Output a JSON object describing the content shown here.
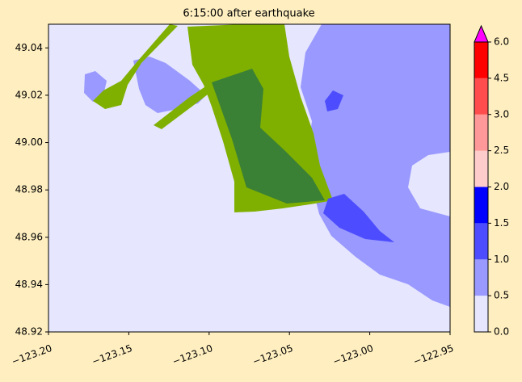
{
  "chart_data": {
    "type": "map",
    "title": "6:15:00 after earthquake",
    "xlim": [
      -123.2,
      -122.95
    ],
    "ylim": [
      48.92,
      49.05
    ],
    "xticks": [
      {
        "value": -123.2,
        "label": "−123.20"
      },
      {
        "value": -123.15,
        "label": "−123.15"
      },
      {
        "value": -123.1,
        "label": "−123.10"
      },
      {
        "value": -123.05,
        "label": "−123.05"
      },
      {
        "value": -123.0,
        "label": "−123.00"
      },
      {
        "value": -122.95,
        "label": "−122.95"
      }
    ],
    "yticks": [
      48.92,
      48.94,
      48.96,
      48.98,
      {
        "value": 49.0,
        "label": "49.00"
      },
      49.02,
      49.04
    ],
    "colorbar": {
      "levels": [
        {
          "value": 0,
          "label": "0.0"
        },
        {
          "value": 0.5,
          "label": "0.5"
        },
        {
          "value": 1,
          "label": "1.0"
        },
        {
          "value": 1.5,
          "label": "1.5"
        },
        {
          "value": 2,
          "label": "2.0"
        },
        {
          "value": 2.5,
          "label": "2.5"
        },
        {
          "value": 3,
          "label": "3.0"
        },
        {
          "value": 4.5,
          "label": "4.5"
        },
        {
          "value": 6,
          "label": "6.0"
        }
      ],
      "colors": [
        "#e6e6ff",
        "#9999ff",
        "#4d4dff",
        "#0000ff",
        "#ffcccc",
        "#ff9999",
        "#ff4d4d",
        "#ff0000"
      ],
      "extend_color": "#ff00ff"
    }
  }
}
